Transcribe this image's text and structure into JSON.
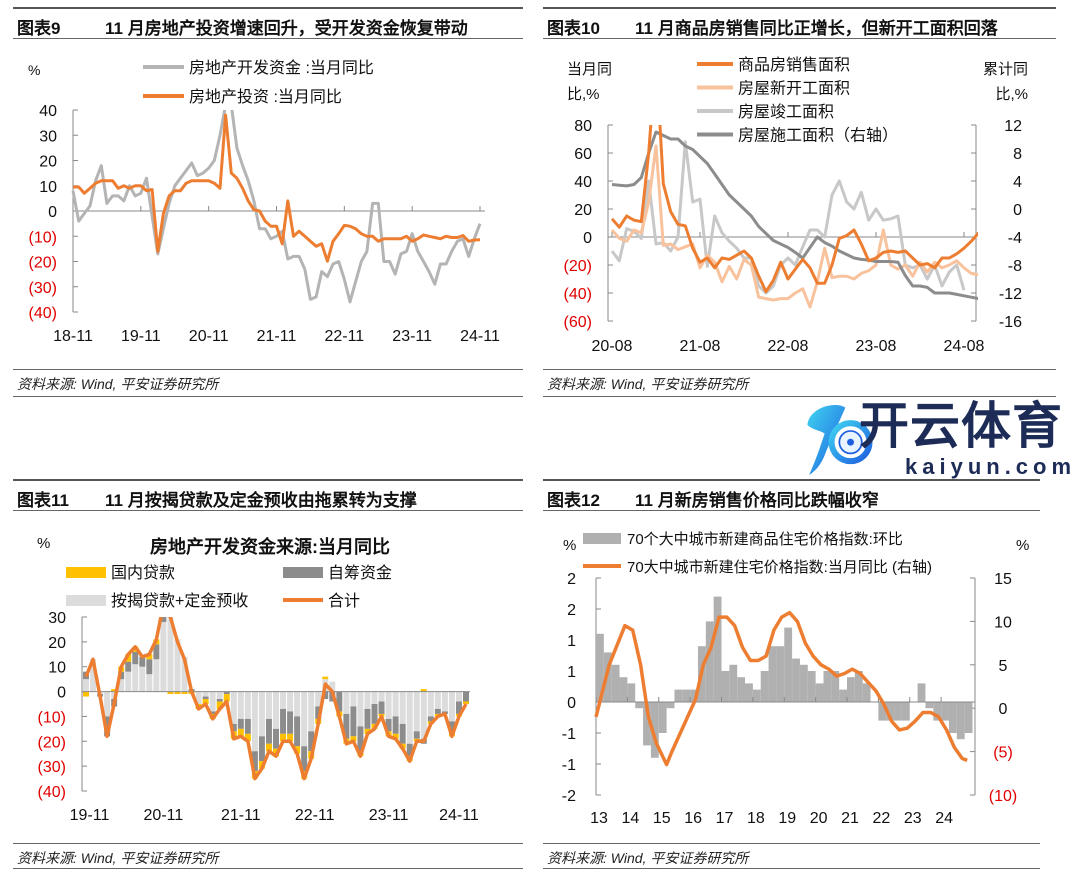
{
  "panels": [
    {
      "num": "图表9",
      "title": "11 月房地产投资增速回升，受开发资金恢复带动",
      "source": "资料来源: Wind, 平安证券研究所"
    },
    {
      "num": "图表10",
      "title": "11 月商品房销售同比正增长，但新开工面积回落",
      "source": "资料来源: Wind, 平安证券研究所"
    },
    {
      "num": "图表11",
      "title": "11 月按揭贷款及定金预收由拖累转为支撑",
      "source": "资料来源: Wind, 平安证券研究所"
    },
    {
      "num": "图表12",
      "title": "11 月新房销售价格同比跌幅收窄",
      "source": "资料来源: Wind, 平安证券研究所"
    }
  ],
  "watermark": {
    "cn": "开云体育",
    "en": "kaiyun.com"
  },
  "colors": {
    "orange": "#ed7d31",
    "light_orange": "#f8c29d",
    "light_gray": "#c8c8c8",
    "dark_gray": "#8c8c8c",
    "gray": "#b4b4b4",
    "yellow": "#ffc000",
    "bar_gray": "#b0b0b0",
    "neg_label": "#e00000"
  },
  "chart_data": [
    {
      "type": "line",
      "ylabel": "%",
      "ylim": [
        -40,
        40
      ],
      "yticks": [
        40,
        30,
        20,
        10,
        0,
        -10,
        -20,
        -30,
        -40
      ],
      "ytick_labels": [
        "40",
        "30",
        "20",
        "10",
        "0",
        "(10)",
        "(20)",
        "(30)",
        "(40)"
      ],
      "xticks_idx": [
        0,
        12,
        24,
        36,
        48,
        60,
        72
      ],
      "xtick_labels": [
        "18-11",
        "19-11",
        "20-11",
        "21-11",
        "22-11",
        "23-11",
        "24-11"
      ],
      "series": [
        {
          "name": "房地产开发资金 :当月同比",
          "color": "#b4b4b4",
          "values": [
            8,
            -4,
            -1,
            2,
            12,
            18,
            3,
            6,
            6,
            4,
            10,
            6,
            7,
            13,
            -2,
            -17,
            -7,
            3,
            10,
            13,
            16,
            19,
            14,
            15,
            17,
            20,
            30,
            42,
            42,
            25,
            18,
            12,
            4,
            -7,
            -7,
            -11,
            -10,
            -8,
            -19,
            -18,
            -18,
            -23,
            -35,
            -34,
            -24,
            -26,
            -21,
            -20,
            -27,
            -36,
            -28,
            -20,
            -16,
            3,
            3,
            -20,
            -20,
            -25,
            -17,
            -16,
            -9,
            -16,
            -20,
            -24,
            -29,
            -21,
            -21,
            -16,
            -12,
            -11,
            -18,
            -11,
            -5
          ]
        },
        {
          "name": "房地产投资 :当月同比",
          "color": "#ed7d31",
          "values": [
            9.5,
            9.5,
            7,
            9,
            11,
            12,
            12,
            12,
            9,
            10,
            9,
            10,
            10,
            8,
            8.5,
            -16,
            -1,
            6,
            8,
            8,
            11,
            12,
            12,
            12,
            12,
            11,
            9,
            38,
            15,
            13,
            9,
            4,
            0.5,
            0,
            -4,
            -6,
            -6,
            -13,
            4,
            -10,
            -8,
            -10,
            -12,
            -14,
            -13,
            -19.9,
            -12,
            -9,
            -5.7,
            -6,
            -7,
            -9,
            -10,
            -10,
            -12,
            -11,
            -11,
            -11,
            -11,
            -10,
            -12,
            -11,
            -9.5,
            -10,
            -10.5,
            -11,
            -10,
            -10.5,
            -10.5,
            -9.7,
            -12,
            -11.5,
            -11.4
          ]
        }
      ]
    },
    {
      "type": "line",
      "ylabel_left": [
        "当月同",
        "比,%"
      ],
      "ylabel_right": [
        "累计同",
        "比,%"
      ],
      "ylim_left": [
        -60,
        80
      ],
      "ylim_right": [
        -16,
        12
      ],
      "yticks_left": [
        80,
        60,
        40,
        20,
        0,
        -20,
        -40,
        -60
      ],
      "ytick_labels_left": [
        "80",
        "60",
        "40",
        "20",
        "0",
        "(20)",
        "(40)",
        "(60)"
      ],
      "yticks_right": [
        12,
        8,
        4,
        0,
        -4,
        -8,
        -12,
        -16
      ],
      "ytick_labels_right": [
        "12",
        "8",
        "4",
        "0",
        "-4",
        "-8",
        "-12",
        "-16"
      ],
      "xticks_idx": [
        0,
        12,
        24,
        36,
        48
      ],
      "xtick_labels": [
        "20-08",
        "21-08",
        "22-08",
        "23-08",
        "24-08"
      ],
      "series": [
        {
          "name": "商品房销售面积",
          "color": "#ed7d31",
          "axis": "left",
          "values": [
            13,
            7,
            15,
            12,
            11,
            60,
            130,
            38,
            18,
            9,
            8,
            -8,
            -18,
            -15,
            -22,
            -15,
            -16,
            -13,
            -10,
            -15,
            -28,
            -39,
            -31,
            -18,
            -30,
            -23,
            -16,
            -22,
            -33,
            -33,
            -20,
            -1,
            1,
            5,
            -5,
            -17,
            -15,
            -11,
            -10,
            -11,
            -10,
            -15,
            -20,
            -19,
            -22,
            -15,
            -15,
            -12,
            -8,
            -3,
            3
          ]
        },
        {
          "name": "房屋新开工面积",
          "color": "#f8c29d",
          "axis": "left",
          "values": [
            5,
            -1,
            -3,
            5,
            3,
            25,
            65,
            -6,
            -5,
            -9,
            -7,
            -5,
            -22,
            -13,
            -18,
            -32,
            -21,
            -30,
            -16,
            -20,
            -43,
            -44,
            -45,
            -44,
            -44,
            -40,
            -37,
            -50,
            -32,
            -8,
            -29,
            -28,
            -28,
            -30,
            -26,
            -24,
            -20,
            5,
            -20,
            -23,
            -20,
            -28,
            -18,
            -25,
            -18,
            -22,
            -20,
            -17,
            -22,
            -26,
            -27
          ]
        },
        {
          "name": "房屋竣工面积",
          "color": "#c8c8c8",
          "axis": "left",
          "values": [
            -10,
            -17,
            6,
            4,
            -1,
            40,
            -5,
            -4,
            -10,
            0,
            68,
            25,
            27,
            -21,
            15,
            3,
            -3,
            -8,
            -15,
            -15,
            -35,
            -40,
            -35,
            -20,
            -15,
            -20,
            -7,
            5,
            5,
            0,
            30,
            40,
            25,
            20,
            32,
            12,
            20,
            12,
            13,
            15,
            -20,
            -22,
            -20,
            -30,
            -20,
            -35,
            -25,
            -20,
            -38
          ]
        },
        {
          "name": "房屋施工面积（右轴）",
          "color": "#8c8c8c",
          "axis": "right",
          "values": [
            3.5,
            3.4,
            3.3,
            3.5,
            4.5,
            8,
            11,
            10.5,
            10,
            10,
            9,
            8.5,
            7.5,
            6.5,
            5,
            3.5,
            2,
            1,
            0,
            -1,
            -2.5,
            -3.5,
            -4.5,
            -5,
            -5.5,
            -6.2,
            -7,
            -5.5,
            -4,
            -4.8,
            -5.3,
            -6,
            -6.5,
            -7,
            -7.2,
            -7.3,
            -7.5,
            -7.5,
            -7.5,
            -7.6,
            -9.5,
            -11,
            -11,
            -11.2,
            -12,
            -12,
            -12,
            -12.2,
            -12.4,
            -12.6,
            -12.8
          ]
        }
      ]
    },
    {
      "type": "bar",
      "stacked": true,
      "title": "房地产开发资金来源:当月同比",
      "ylabel": "%",
      "ylim": [
        -40,
        30
      ],
      "yticks": [
        30,
        20,
        10,
        0,
        -10,
        -20,
        -30,
        -40
      ],
      "ytick_labels": [
        "30",
        "20",
        "10",
        "0",
        "(10)",
        "(20)",
        "(30)",
        "(40)"
      ],
      "xticks_idx": [
        0.5,
        11,
        22,
        32.5,
        43,
        53
      ],
      "xtick_labels": [
        "19-11",
        "20-11",
        "21-11",
        "22-11",
        "23-11",
        "24-11"
      ],
      "series": [
        {
          "name": "国内贷款",
          "color": "#ffc000",
          "kind": "bar",
          "values": [
            -2,
            0,
            0,
            0,
            1,
            2,
            3,
            2,
            0,
            2,
            2,
            2,
            -1,
            -1,
            -1,
            -1,
            -2,
            -2,
            -2,
            -3,
            -3,
            -3,
            -3,
            -3,
            -3,
            -3,
            -3,
            -3,
            -3,
            -3,
            -3,
            -3,
            -3,
            -2,
            1,
            0,
            -2,
            -2,
            -2,
            -2,
            -2,
            -2,
            -1,
            -2,
            -2,
            -2,
            -2,
            -1,
            1,
            -1,
            -1,
            0,
            -1,
            -1,
            -1
          ]
        },
        {
          "name": "自筹资金",
          "color": "#8c8c8c",
          "kind": "bar",
          "values": [
            3,
            0,
            -1,
            -8,
            -3,
            3,
            4,
            5,
            4,
            6,
            6,
            5,
            0,
            0,
            0,
            1,
            0,
            -1,
            -1,
            -1,
            -1,
            -3,
            -4,
            -6,
            -8,
            -10,
            -10,
            -8,
            -10,
            -9,
            -12,
            -10,
            -8,
            -5,
            -3,
            -4,
            -8,
            -10,
            -12,
            -10,
            -8,
            -8,
            -5,
            -5,
            -7,
            -8,
            -5,
            -3,
            -2,
            -2,
            -2,
            -1,
            -5,
            -5,
            -4
          ]
        },
        {
          "name": "按揭贷款+定金预收",
          "color": "#dcdcdc",
          "kind": "bar",
          "values": [
            5,
            13,
            -1,
            -10,
            -3,
            5,
            8,
            11,
            10,
            7,
            13,
            28,
            31,
            21,
            14,
            0,
            -5,
            -2,
            -8,
            -3,
            0,
            -13,
            -11,
            -11,
            -24,
            -18,
            -11,
            -15,
            -7,
            -8,
            -10,
            -22,
            -16,
            -6,
            5,
            4,
            0,
            -9,
            -6,
            -14,
            -7,
            -5,
            -4,
            -11,
            -10,
            -13,
            -21,
            -16,
            -19,
            -10,
            -7,
            -8,
            -12,
            -4,
            0
          ]
        },
        {
          "name": "合计",
          "color": "#ed7d31",
          "kind": "line",
          "values": [
            6,
            13,
            -2,
            -18,
            -5,
            10,
            15,
            18,
            14,
            15,
            21,
            35,
            30,
            20,
            13,
            0,
            -7,
            -5,
            -11,
            -7,
            -4,
            -19,
            -18,
            -20,
            -35,
            -31,
            -24,
            -26,
            -20,
            -20,
            -25,
            -35,
            -27,
            -13,
            3,
            0,
            -10,
            -21,
            -20,
            -26,
            -17,
            -15,
            -10,
            -18,
            -19,
            -23,
            -28,
            -20,
            -20,
            -13,
            -10,
            -9,
            -18,
            -10,
            -5
          ]
        }
      ]
    },
    {
      "type": "bar+line",
      "ylabel_left": "%",
      "ylabel_right": "%",
      "ylim_left": [
        -1.5,
        2.0
      ],
      "ylim_right": [
        -10,
        15
      ],
      "yticks_left": [
        2.0,
        1.5,
        1.0,
        0.5,
        0,
        -0.5,
        -1.0,
        -1.5
      ],
      "ytick_labels_left": [
        "2",
        "2",
        "1",
        "1",
        "0",
        "-1",
        "-1",
        "-2"
      ],
      "yticks_right": [
        15,
        10,
        5,
        0,
        -5,
        -10
      ],
      "ytick_labels_right": [
        "15",
        "10",
        "5",
        "0",
        "(5)",
        "(10)"
      ],
      "xticks": [
        2013,
        2014,
        2015,
        2016,
        2017,
        2018,
        2019,
        2020,
        2021,
        2022,
        2023,
        2024
      ],
      "xtick_labels": [
        "13",
        "14",
        "15",
        "16",
        "17",
        "18",
        "19",
        "20",
        "21",
        "22",
        "23",
        "24"
      ],
      "xlim": [
        2013.0,
        2024.92
      ],
      "bars": {
        "name": "70个大中城市新建商品住宅价格指数:环比",
        "color": "#b0b0b0",
        "x_quarter_start": 2013,
        "values": [
          1.1,
          0.8,
          0.6,
          0.4,
          0.3,
          -0.1,
          -0.7,
          -0.9,
          -0.5,
          -0.1,
          0.2,
          0.2,
          0.2,
          0.9,
          1.3,
          1.7,
          0.5,
          0.6,
          0.4,
          0.3,
          0.2,
          0.5,
          0.9,
          0.9,
          1.2,
          0.7,
          0.6,
          0.5,
          0.3,
          0.5,
          0.5,
          0.2,
          0.4,
          0.5,
          0.3,
          0.0,
          -0.3,
          -0.3,
          -0.3,
          -0.3,
          0.0,
          0.3,
          -0.1,
          -0.3,
          -0.3,
          -0.5,
          -0.6,
          -0.5
        ]
      },
      "line": {
        "name": "70大中城市新建住宅价格指数:当月同比 (右轴)",
        "color": "#ed7d31",
        "x": [
          2013.0,
          2013.42,
          2013.92,
          2014.17,
          2014.42,
          2014.67,
          2014.92,
          2015.25,
          2015.42,
          2015.92,
          2016.17,
          2016.42,
          2016.67,
          2016.92,
          2017.17,
          2017.42,
          2017.67,
          2017.92,
          2018.17,
          2018.42,
          2018.67,
          2018.92,
          2019.17,
          2019.42,
          2019.67,
          2019.92,
          2020.17,
          2020.42,
          2020.67,
          2020.92,
          2021.17,
          2021.42,
          2021.67,
          2021.92,
          2022.17,
          2022.42,
          2022.67,
          2022.92,
          2023.17,
          2023.42,
          2023.67,
          2023.92,
          2024.17,
          2024.42,
          2024.67,
          2024.83
        ],
        "values": [
          -1,
          5,
          9.5,
          9,
          5,
          -1,
          -4,
          -6.5,
          -5,
          -1,
          1,
          5,
          7,
          10.5,
          10.5,
          9.5,
          7,
          5.5,
          5.5,
          6,
          9,
          10.5,
          11,
          10,
          7.5,
          6,
          5,
          4.5,
          3.7,
          4,
          4.5,
          4,
          3,
          2,
          0.5,
          -1.5,
          -2.5,
          -2.3,
          -1.5,
          -0.5,
          -0.5,
          -1,
          -2.5,
          -4.5,
          -5.8,
          -6
        ]
      }
    }
  ]
}
